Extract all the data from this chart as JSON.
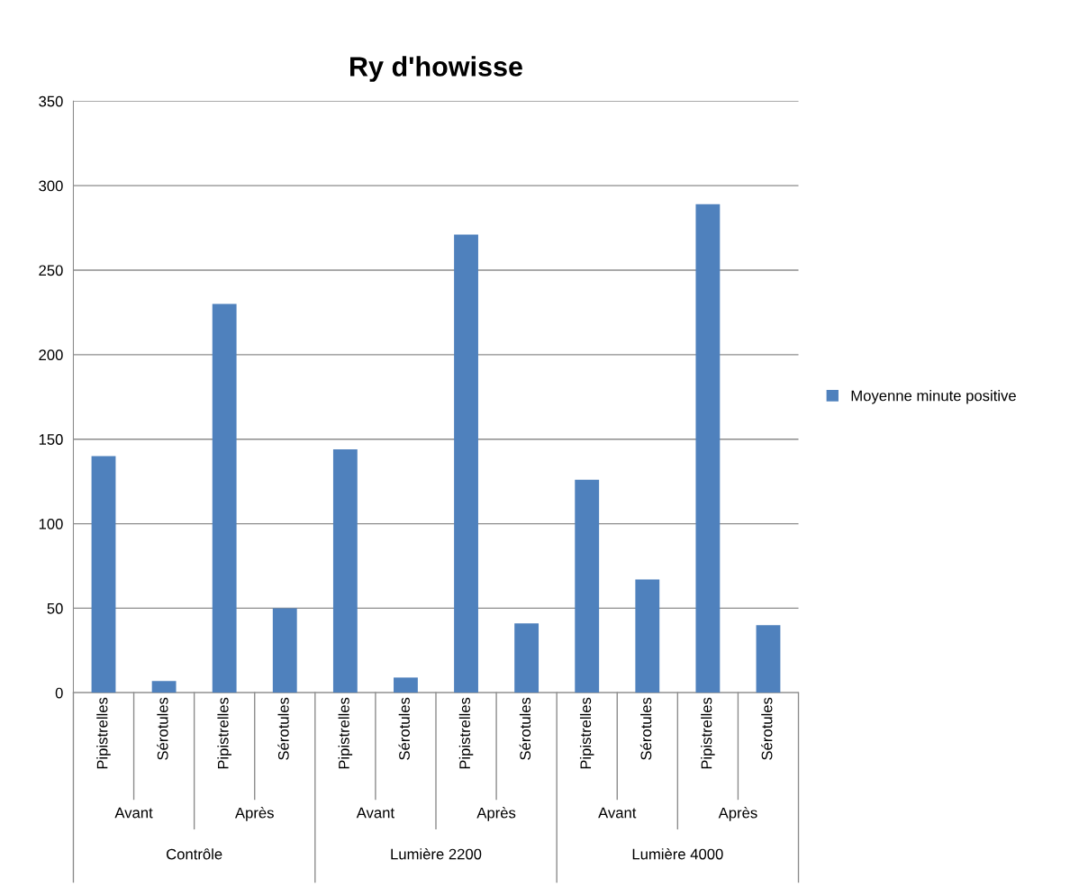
{
  "chart_data": {
    "type": "bar",
    "title": "Ry d'howisse",
    "categories": [
      "Pipistrelles",
      "Sérotules",
      "Pipistrelles",
      "Sérotules",
      "Pipistrelles",
      "Sérotules",
      "Pipistrelles",
      "Sérotules",
      "Pipistrelles",
      "Sérotules",
      "Pipistrelles",
      "Sérotules"
    ],
    "series": [
      {
        "name": "Moyenne minute positive",
        "color": "#4f81bd",
        "values": [
          140,
          7,
          230,
          50,
          144,
          9,
          271,
          41,
          126,
          67,
          289,
          40
        ]
      }
    ],
    "annotations": [
      "Avant",
      "Après",
      "Avant",
      "Après",
      "Avant",
      "Après",
      "Contrôle",
      "Lumière 2200",
      "Lumière 4000"
    ],
    "ylim": [
      0,
      350
    ],
    "yticks": [
      0,
      50,
      100,
      150,
      200,
      250,
      300,
      350
    ],
    "grid": "y",
    "legend": "right"
  }
}
